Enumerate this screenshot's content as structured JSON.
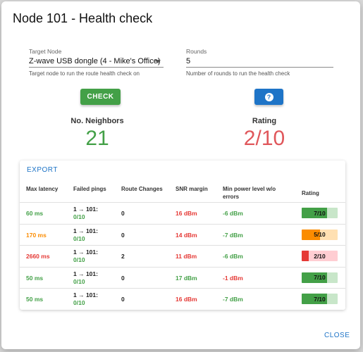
{
  "dialog": {
    "title": "Node 101 - Health check",
    "close_label": "CLOSE"
  },
  "form": {
    "target_node": {
      "label": "Target Node",
      "value": "Z-wave USB dongle (4 - Mike's Office)",
      "help": "Target node to run the route health check on"
    },
    "rounds": {
      "label": "Rounds",
      "value": "5",
      "help": "Number of rounds to run the health check"
    },
    "check_label": "CHECK",
    "help_icon": "?"
  },
  "summary": {
    "neighbors_label": "No. Neighbors",
    "neighbors_value": "21",
    "neighbors_color": "#43a047",
    "rating_label": "Rating",
    "rating_value": "2/10",
    "rating_color": "#e0575b"
  },
  "table": {
    "export_label": "EXPORT",
    "headers": {
      "latency": "Max latency",
      "failed_pings": "Failed pings",
      "route_changes": "Route Changes",
      "snr": "SNR margin",
      "min_power": "Min power level w/o errors",
      "rating": "Rating"
    },
    "rows": [
      {
        "latency": "60 ms",
        "latency_color": "#43a047",
        "pings_route": "1 → 101:",
        "pings_frac": "0/10",
        "route_changes": "0",
        "snr": "16 dBm",
        "snr_color": "#e53935",
        "min_power": "-6 dBm",
        "min_power_color": "#43a047",
        "rating": "7/10",
        "rating_fraction": 0.7,
        "rating_fill": "#43a047",
        "rating_bg": "#c8e6c9"
      },
      {
        "latency": "170 ms",
        "latency_color": "#fb8c00",
        "pings_route": "1 → 101:",
        "pings_frac": "0/10",
        "route_changes": "0",
        "snr": "14 dBm",
        "snr_color": "#e53935",
        "min_power": "-7 dBm",
        "min_power_color": "#43a047",
        "rating": "5/10",
        "rating_fraction": 0.5,
        "rating_fill": "#fb8c00",
        "rating_bg": "#ffe0b2"
      },
      {
        "latency": "2660 ms",
        "latency_color": "#e53935",
        "pings_route": "1 → 101:",
        "pings_frac": "0/10",
        "route_changes": "2",
        "snr": "11 dBm",
        "snr_color": "#e53935",
        "min_power": "-6 dBm",
        "min_power_color": "#43a047",
        "rating": "2/10",
        "rating_fraction": 0.2,
        "rating_fill": "#e53935",
        "rating_bg": "#ffcdd2"
      },
      {
        "latency": "50 ms",
        "latency_color": "#43a047",
        "pings_route": "1 → 101:",
        "pings_frac": "0/10",
        "route_changes": "0",
        "snr": "17 dBm",
        "snr_color": "#43a047",
        "min_power": "-1 dBm",
        "min_power_color": "#e53935",
        "rating": "7/10",
        "rating_fraction": 0.7,
        "rating_fill": "#43a047",
        "rating_bg": "#c8e6c9"
      },
      {
        "latency": "50 ms",
        "latency_color": "#43a047",
        "pings_route": "1 → 101:",
        "pings_frac": "0/10",
        "route_changes": "0",
        "snr": "16 dBm",
        "snr_color": "#e53935",
        "min_power": "-7 dBm",
        "min_power_color": "#43a047",
        "rating": "7/10",
        "rating_fraction": 0.7,
        "rating_fill": "#43a047",
        "rating_bg": "#c8e6c9"
      }
    ]
  }
}
